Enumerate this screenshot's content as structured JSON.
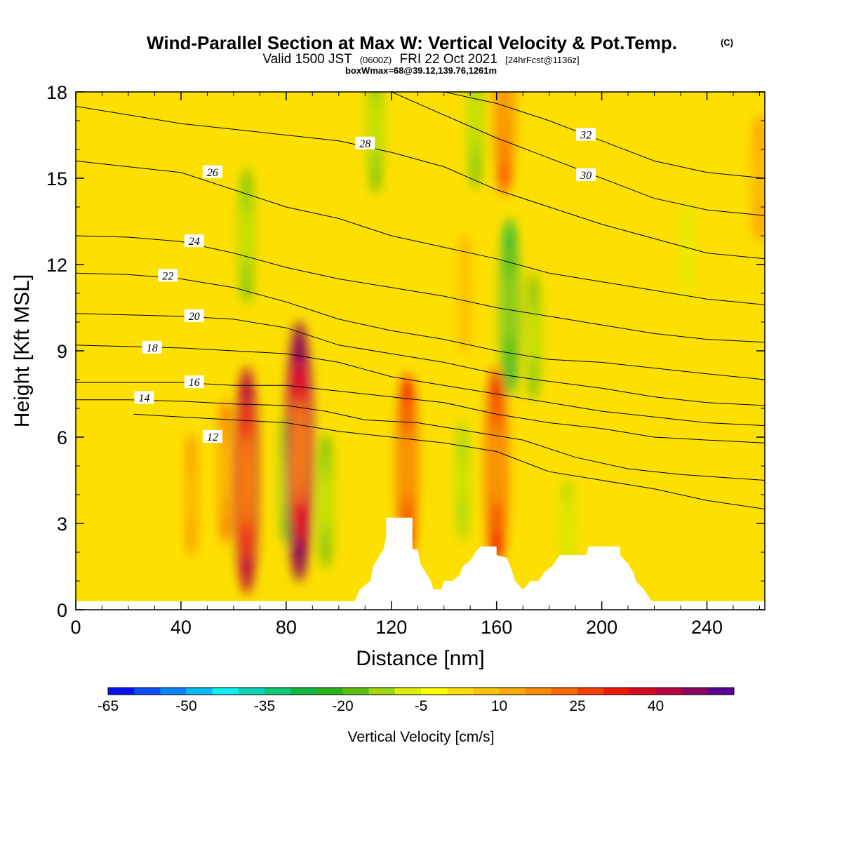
{
  "title": {
    "main": "Wind-Parallel Section at Max W: Vertical Velocity & Pot.Temp.",
    "copyright": "(C)",
    "valid_prefix": "Valid 1500 JST",
    "valid_utc": "(0600Z)",
    "valid_date": "FRI 22 Oct 2021",
    "forecast": "[24hrFcst@1136z]",
    "box_info": "boxWmax=68@39.12,139.76,1261m"
  },
  "chart_data": {
    "type": "heatmap",
    "xlabel": "Distance [nm]",
    "ylabel": "Height [Kft MSL]",
    "xlim": [
      0,
      262
    ],
    "ylim": [
      0,
      18
    ],
    "x_ticks": [
      0,
      40,
      80,
      120,
      160,
      200,
      240
    ],
    "y_ticks": [
      0,
      3,
      6,
      9,
      12,
      15,
      18
    ],
    "colorbar": {
      "title": "Vertical Velocity [cm/s]",
      "tick_labels": [
        "-65",
        "-50",
        "-35",
        "-20",
        "-5",
        "10",
        "25",
        "40"
      ],
      "tick_values": [
        -65,
        -50,
        -35,
        -20,
        -5,
        10,
        25,
        40
      ],
      "levels": [
        -65,
        -60,
        -55,
        -50,
        -45,
        -40,
        -35,
        -30,
        -25,
        -20,
        -15,
        -10,
        -5,
        0,
        5,
        10,
        15,
        20,
        25,
        30,
        35,
        40,
        45,
        50
      ],
      "colors": [
        "#0a10f0",
        "#0a4ef6",
        "#0a86f4",
        "#08baf4",
        "#0af0f0",
        "#0ad2b4",
        "#10c878",
        "#10b83e",
        "#28b418",
        "#60c010",
        "#a0d810",
        "#e0ee00",
        "#ffff00",
        "#fde000",
        "#fcc400",
        "#fbaa00",
        "#fa8c00",
        "#f86a00",
        "#f54000",
        "#f01800",
        "#d80820",
        "#b80040",
        "#8a0060",
        "#5a0090"
      ]
    },
    "w_features": [
      {
        "x": 65,
        "y": 4.5,
        "w": 40,
        "kind": "updraft"
      },
      {
        "x": 57,
        "y": 4.8,
        "w": 20,
        "kind": "updraft"
      },
      {
        "x": 85,
        "y": 5.5,
        "w": 48,
        "kind": "updraft"
      },
      {
        "x": 126,
        "y": 5.0,
        "w": 30,
        "kind": "updraft"
      },
      {
        "x": 160,
        "y": 5.0,
        "w": 33,
        "kind": "updraft"
      },
      {
        "x": 163,
        "y": 17.5,
        "w": 28,
        "kind": "updraft"
      },
      {
        "x": 44,
        "y": 4.0,
        "w": 15,
        "kind": "updraft"
      },
      {
        "x": 148,
        "y": 11.0,
        "w": 14,
        "kind": "updraft"
      },
      {
        "x": 260,
        "y": 15.0,
        "w": 16,
        "kind": "updraft"
      },
      {
        "x": 65,
        "y": 13.0,
        "w": -18,
        "kind": "downdraft"
      },
      {
        "x": 80,
        "y": 4.5,
        "w": -16,
        "kind": "downdraft"
      },
      {
        "x": 95,
        "y": 3.8,
        "w": -18,
        "kind": "downdraft"
      },
      {
        "x": 114,
        "y": 16.8,
        "w": -18,
        "kind": "downdraft"
      },
      {
        "x": 147,
        "y": 4.5,
        "w": -15,
        "kind": "downdraft"
      },
      {
        "x": 165,
        "y": 10.5,
        "w": -28,
        "kind": "downdraft"
      },
      {
        "x": 174,
        "y": 9.5,
        "w": -16,
        "kind": "downdraft"
      },
      {
        "x": 152,
        "y": 17.0,
        "w": -18,
        "kind": "downdraft"
      },
      {
        "x": 187,
        "y": 2.5,
        "w": -14,
        "kind": "downdraft"
      },
      {
        "x": 232,
        "y": 12.5,
        "w": -10,
        "kind": "downdraft"
      }
    ],
    "terrain": [
      [
        0,
        0.3
      ],
      [
        106,
        0.3
      ],
      [
        108,
        0.7
      ],
      [
        112,
        1.0
      ],
      [
        113,
        1.5
      ],
      [
        117,
        2.1
      ],
      [
        118,
        2.5
      ],
      [
        118,
        3.2
      ],
      [
        128,
        3.2
      ],
      [
        128,
        2.1
      ],
      [
        130,
        2.1
      ],
      [
        131,
        1.6
      ],
      [
        133,
        1.3
      ],
      [
        135,
        1.0
      ],
      [
        136,
        0.7
      ],
      [
        139,
        0.7
      ],
      [
        140,
        1.0
      ],
      [
        143,
        1.0
      ],
      [
        146,
        1.2
      ],
      [
        147,
        1.5
      ],
      [
        150,
        1.7
      ],
      [
        152,
        2.0
      ],
      [
        154,
        2.2
      ],
      [
        160,
        2.2
      ],
      [
        160,
        1.9
      ],
      [
        164,
        1.8
      ],
      [
        166,
        1.3
      ],
      [
        167,
        1.0
      ],
      [
        170,
        0.7
      ],
      [
        173,
        1.0
      ],
      [
        176,
        1.0
      ],
      [
        178,
        1.3
      ],
      [
        181,
        1.5
      ],
      [
        184,
        1.9
      ],
      [
        194,
        1.9
      ],
      [
        195,
        2.2
      ],
      [
        207,
        2.2
      ],
      [
        207,
        1.9
      ],
      [
        210,
        1.6
      ],
      [
        212,
        1.3
      ],
      [
        213,
        1.0
      ],
      [
        216,
        0.7
      ],
      [
        219,
        0.3
      ],
      [
        262,
        0.3
      ]
    ],
    "theta_contours": [
      {
        "value": 12,
        "label": "12",
        "label_x": 52,
        "label_y": 6.0,
        "pts": [
          [
            22,
            6.8
          ],
          [
            40,
            6.7
          ],
          [
            60,
            6.6
          ],
          [
            80,
            6.5
          ],
          [
            100,
            6.2
          ],
          [
            120,
            6.0
          ],
          [
            140,
            5.8
          ],
          [
            160,
            5.5
          ],
          [
            180,
            4.8
          ],
          [
            200,
            4.5
          ],
          [
            220,
            4.2
          ],
          [
            240,
            3.8
          ],
          [
            262,
            3.5
          ]
        ]
      },
      {
        "value": 14,
        "label": "14",
        "label_x": 26,
        "label_y": 7.35,
        "pts": [
          [
            0,
            7.3
          ],
          [
            20,
            7.3
          ],
          [
            40,
            7.25
          ],
          [
            60,
            7.15
          ],
          [
            80,
            7.1
          ],
          [
            95,
            6.9
          ],
          [
            110,
            6.6
          ],
          [
            130,
            6.5
          ],
          [
            150,
            6.2
          ],
          [
            170,
            5.9
          ],
          [
            190,
            5.3
          ],
          [
            210,
            4.9
          ],
          [
            230,
            4.7
          ],
          [
            262,
            4.5
          ]
        ]
      },
      {
        "value": 16,
        "label": "16",
        "label_x": 45,
        "label_y": 7.9,
        "pts": [
          [
            0,
            7.9
          ],
          [
            20,
            7.9
          ],
          [
            40,
            7.9
          ],
          [
            60,
            7.8
          ],
          [
            80,
            7.8
          ],
          [
            100,
            7.6
          ],
          [
            120,
            7.4
          ],
          [
            140,
            7.2
          ],
          [
            160,
            6.8
          ],
          [
            180,
            6.5
          ],
          [
            200,
            6.3
          ],
          [
            220,
            6.0
          ],
          [
            240,
            5.9
          ],
          [
            262,
            5.8
          ]
        ]
      },
      {
        "value": 18,
        "label": "18",
        "label_x": 29,
        "label_y": 9.1,
        "pts": [
          [
            0,
            9.2
          ],
          [
            20,
            9.15
          ],
          [
            40,
            9.1
          ],
          [
            60,
            9.0
          ],
          [
            80,
            8.9
          ],
          [
            100,
            8.6
          ],
          [
            120,
            8.1
          ],
          [
            140,
            7.8
          ],
          [
            160,
            7.5
          ],
          [
            180,
            7.2
          ],
          [
            200,
            6.9
          ],
          [
            220,
            6.7
          ],
          [
            240,
            6.5
          ],
          [
            262,
            6.4
          ]
        ]
      },
      {
        "value": 20,
        "label": "20",
        "label_x": 45,
        "label_y": 10.2,
        "pts": [
          [
            0,
            10.3
          ],
          [
            20,
            10.25
          ],
          [
            40,
            10.2
          ],
          [
            60,
            10.1
          ],
          [
            80,
            9.8
          ],
          [
            100,
            9.2
          ],
          [
            120,
            8.9
          ],
          [
            140,
            8.6
          ],
          [
            160,
            8.2
          ],
          [
            175,
            8.0
          ],
          [
            200,
            7.7
          ],
          [
            220,
            7.4
          ],
          [
            240,
            7.2
          ],
          [
            262,
            7.1
          ]
        ]
      },
      {
        "value": 22,
        "label": "22",
        "label_x": 35,
        "label_y": 11.6,
        "pts": [
          [
            0,
            11.7
          ],
          [
            20,
            11.65
          ],
          [
            40,
            11.5
          ],
          [
            60,
            11.2
          ],
          [
            80,
            10.7
          ],
          [
            100,
            10.1
          ],
          [
            120,
            9.7
          ],
          [
            140,
            9.4
          ],
          [
            160,
            9.0
          ],
          [
            180,
            8.7
          ],
          [
            200,
            8.6
          ],
          [
            220,
            8.4
          ],
          [
            240,
            8.2
          ],
          [
            262,
            8.0
          ]
        ]
      },
      {
        "value": 24,
        "label": "24",
        "label_x": 45,
        "label_y": 12.8,
        "pts": [
          [
            0,
            13.0
          ],
          [
            20,
            12.95
          ],
          [
            40,
            12.8
          ],
          [
            60,
            12.4
          ],
          [
            80,
            11.9
          ],
          [
            100,
            11.5
          ],
          [
            120,
            11.2
          ],
          [
            140,
            10.9
          ],
          [
            160,
            10.5
          ],
          [
            180,
            10.2
          ],
          [
            200,
            9.9
          ],
          [
            220,
            9.6
          ],
          [
            240,
            9.4
          ],
          [
            262,
            9.3
          ]
        ]
      },
      {
        "value": 26,
        "label": "26",
        "label_x": 52,
        "label_y": 15.2,
        "pts": [
          [
            0,
            15.6
          ],
          [
            20,
            15.4
          ],
          [
            40,
            15.2
          ],
          [
            60,
            14.6
          ],
          [
            80,
            14.0
          ],
          [
            100,
            13.6
          ],
          [
            120,
            13.0
          ],
          [
            140,
            12.6
          ],
          [
            160,
            12.2
          ],
          [
            180,
            11.7
          ],
          [
            200,
            11.4
          ],
          [
            220,
            11.1
          ],
          [
            240,
            10.8
          ],
          [
            262,
            10.6
          ]
        ]
      },
      {
        "value": 28,
        "label": "28",
        "label_x": 110,
        "label_y": 16.2,
        "pts": [
          [
            0,
            17.5
          ],
          [
            20,
            17.2
          ],
          [
            40,
            16.9
          ],
          [
            60,
            16.7
          ],
          [
            80,
            16.5
          ],
          [
            100,
            16.3
          ],
          [
            120,
            15.9
          ],
          [
            140,
            15.4
          ],
          [
            160,
            14.6
          ],
          [
            180,
            14.0
          ],
          [
            200,
            13.4
          ],
          [
            220,
            12.9
          ],
          [
            240,
            12.4
          ],
          [
            262,
            12.2
          ]
        ]
      },
      {
        "value": 30,
        "label": "30",
        "label_x": 194,
        "label_y": 15.1,
        "pts": [
          [
            120,
            18.0
          ],
          [
            140,
            17.2
          ],
          [
            160,
            16.4
          ],
          [
            180,
            15.7
          ],
          [
            200,
            15.0
          ],
          [
            220,
            14.3
          ],
          [
            240,
            13.9
          ],
          [
            262,
            13.7
          ]
        ]
      },
      {
        "value": 32,
        "label": "32",
        "label_x": 194,
        "label_y": 16.5,
        "pts": [
          [
            140,
            18.0
          ],
          [
            160,
            17.6
          ],
          [
            180,
            17.0
          ],
          [
            200,
            16.3
          ],
          [
            220,
            15.6
          ],
          [
            240,
            15.2
          ],
          [
            262,
            15.0
          ]
        ]
      }
    ]
  }
}
